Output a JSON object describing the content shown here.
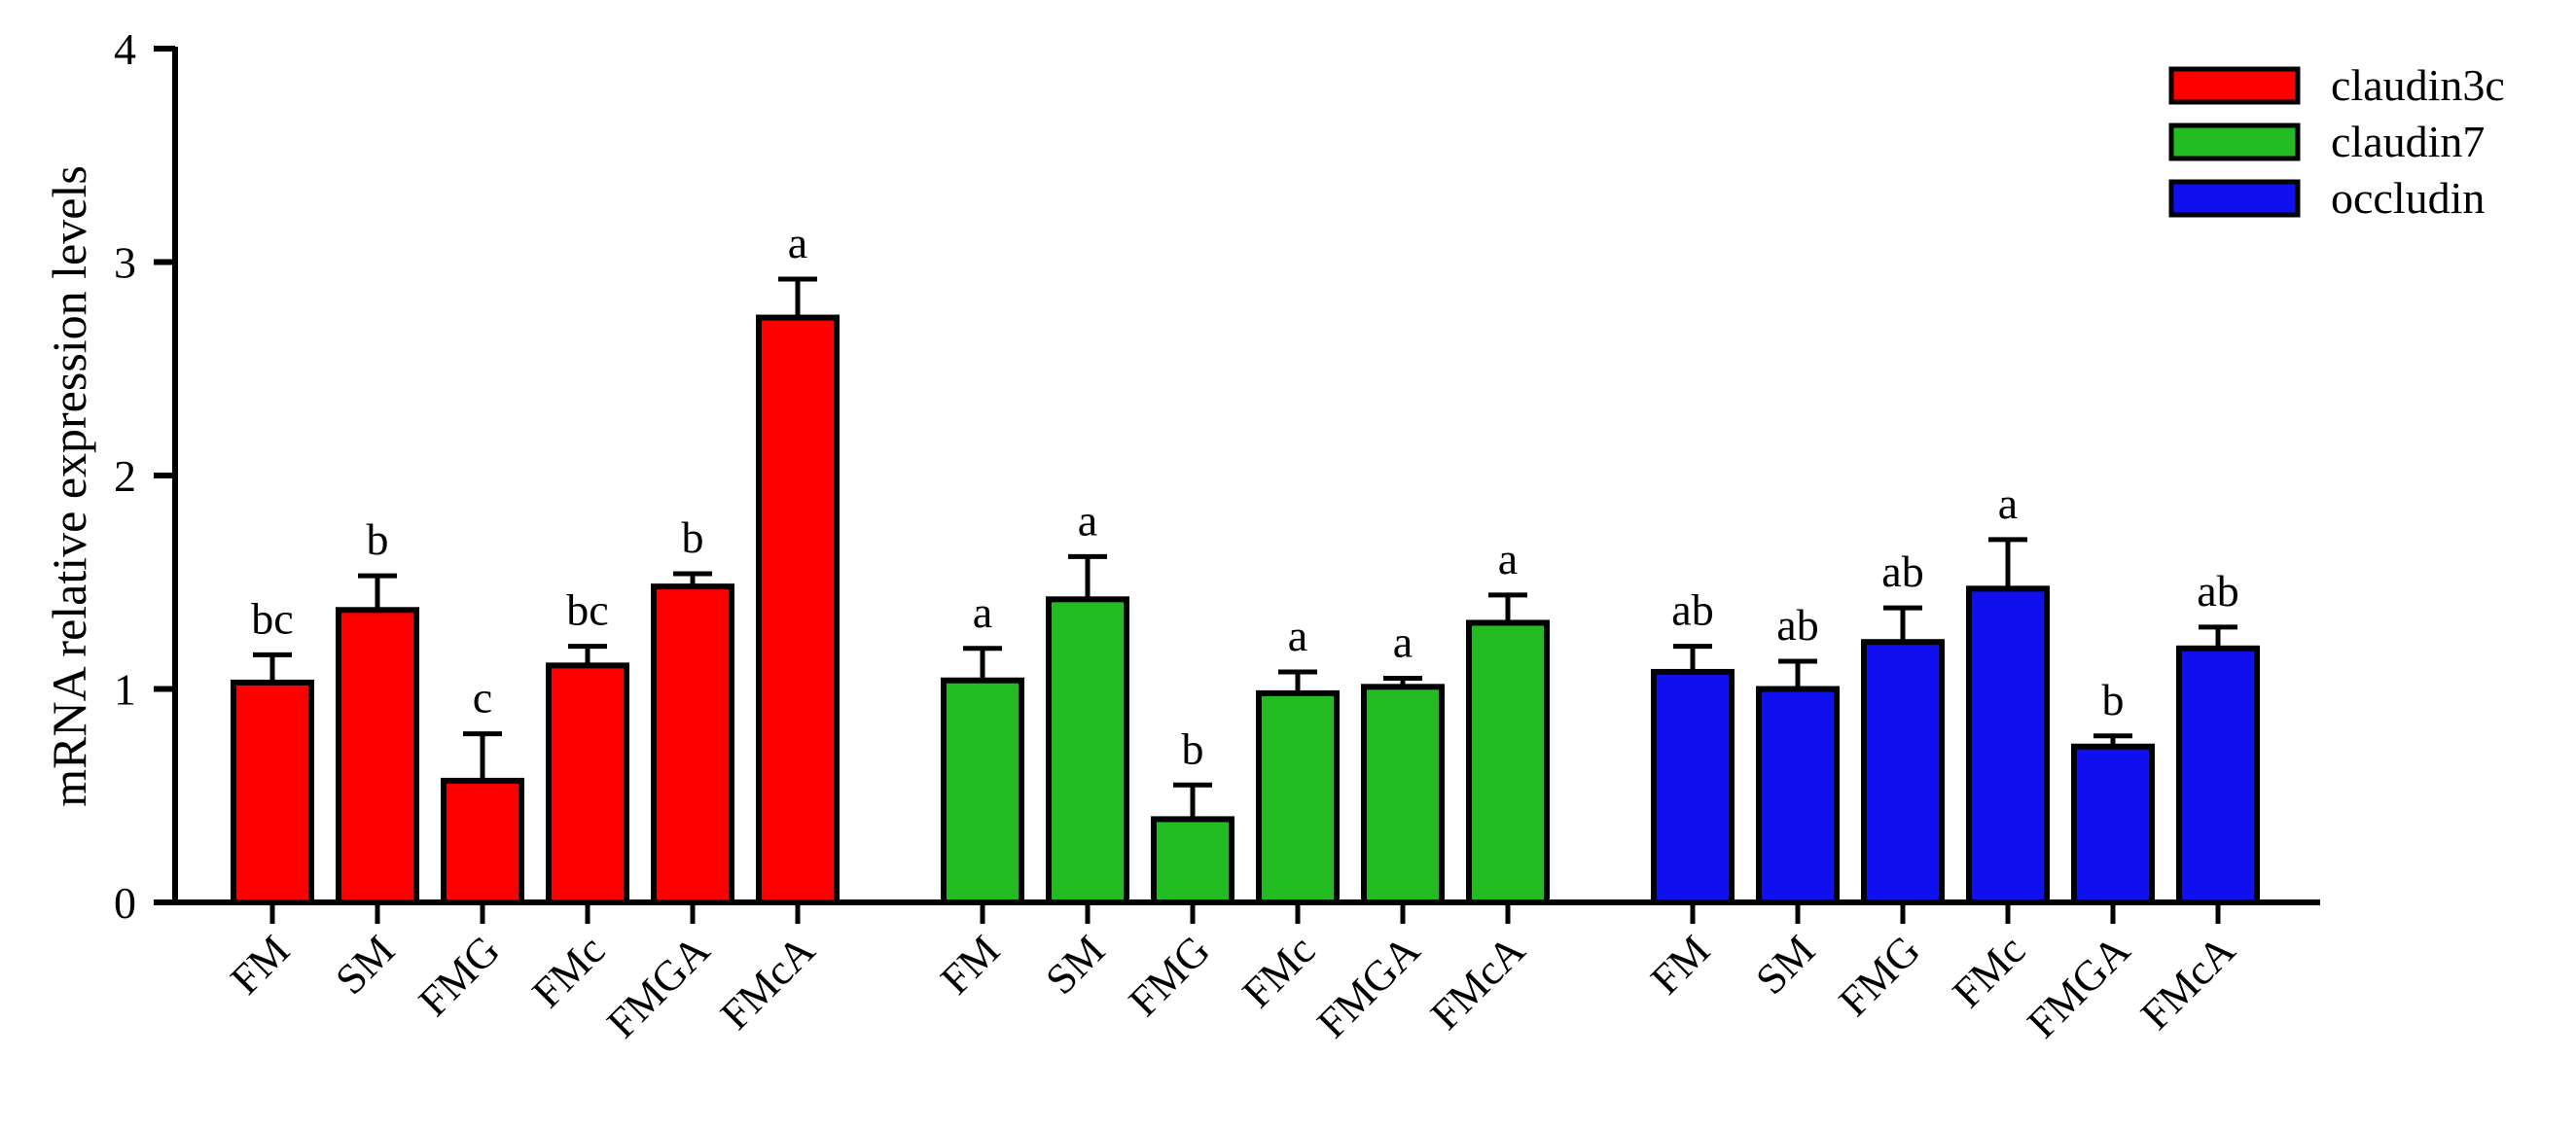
{
  "chart_data": {
    "type": "bar",
    "ylabel": "mRNA relative expression levels",
    "xlabel": "",
    "ylim": [
      0,
      4
    ],
    "yticks": [
      0,
      1,
      2,
      3,
      4
    ],
    "categories": [
      "FM",
      "SM",
      "FMG",
      "FMc",
      "FMGA",
      "FMcA"
    ],
    "legend_position": "top-right",
    "series": [
      {
        "name": "claudin3c",
        "color": "#ff0000",
        "values": [
          1.03,
          1.37,
          0.57,
          1.11,
          1.48,
          2.74
        ],
        "errors": [
          0.13,
          0.16,
          0.22,
          0.09,
          0.06,
          0.18
        ],
        "significance": [
          "bc",
          "b",
          "c",
          "bc",
          "b",
          "a"
        ]
      },
      {
        "name": "claudin7",
        "color": "#22bb22",
        "values": [
          1.04,
          1.42,
          0.39,
          0.98,
          1.01,
          1.31
        ],
        "errors": [
          0.15,
          0.2,
          0.16,
          0.1,
          0.04,
          0.13
        ],
        "significance": [
          "a",
          "a",
          "b",
          "a",
          "a",
          "a"
        ]
      },
      {
        "name": "occludin",
        "color": "#1010ee",
        "values": [
          1.08,
          1.0,
          1.22,
          1.47,
          0.73,
          1.19
        ],
        "errors": [
          0.12,
          0.13,
          0.16,
          0.23,
          0.05,
          0.1
        ],
        "significance": [
          "ab",
          "ab",
          "ab",
          "a",
          "b",
          "ab"
        ]
      }
    ]
  }
}
